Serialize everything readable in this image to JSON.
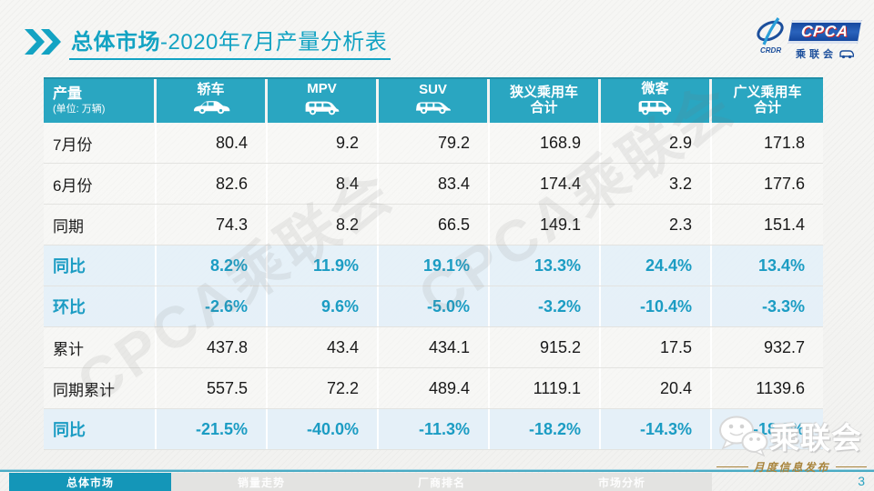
{
  "slide": {
    "title": {
      "prefix": "总体市场",
      "suffix": "-2020年7月产量分析表"
    },
    "watermark": "CPCA乘联会",
    "page_number": "3",
    "footer_tabs": [
      {
        "label": "总体市场",
        "active": true
      },
      {
        "label": "销量走势",
        "active": false
      },
      {
        "label": "厂商排名",
        "active": false
      },
      {
        "label": "市场分析",
        "active": false
      }
    ],
    "cpca_logo": {
      "acronym": "CPCA",
      "sub": "CRDR",
      "cn_name": "乘联会"
    },
    "wechat_logo": {
      "cn_name": "乘联会",
      "subtitle": "月度信息发布"
    }
  },
  "table": {
    "header": {
      "label": "产量",
      "unit": "(单位: 万辆)",
      "columns": [
        {
          "label": "轿车",
          "icon": "sedan-icon"
        },
        {
          "label": "MPV",
          "icon": "mpv-icon"
        },
        {
          "label": "SUV",
          "icon": "suv-icon"
        },
        {
          "label": "狭义乘用车",
          "label2": "合计",
          "icon": null
        },
        {
          "label": "微客",
          "icon": "microvan-icon"
        },
        {
          "label": "广义乘用车",
          "label2": "合计",
          "icon": null
        }
      ]
    },
    "rows": [
      {
        "label": "7月份",
        "type": "normal",
        "values": [
          "80.4",
          "9.2",
          "79.2",
          "168.9",
          "2.9",
          "171.8"
        ]
      },
      {
        "label": "6月份",
        "type": "normal",
        "values": [
          "82.6",
          "8.4",
          "83.4",
          "174.4",
          "3.2",
          "177.6"
        ]
      },
      {
        "label": "同期",
        "type": "normal",
        "values": [
          "74.3",
          "8.2",
          "66.5",
          "149.1",
          "2.3",
          "151.4"
        ]
      },
      {
        "label": "同比",
        "type": "highlight",
        "values": [
          "8.2%",
          "11.9%",
          "19.1%",
          "13.3%",
          "24.4%",
          "13.4%"
        ]
      },
      {
        "label": "环比",
        "type": "highlight",
        "values": [
          "-2.6%",
          "9.6%",
          "-5.0%",
          "-3.2%",
          "-10.4%",
          "-3.3%"
        ]
      },
      {
        "label": "累计",
        "type": "normal",
        "values": [
          "437.8",
          "43.4",
          "434.1",
          "915.2",
          "17.5",
          "932.7"
        ]
      },
      {
        "label": "同期累计",
        "type": "normal",
        "values": [
          "557.5",
          "72.2",
          "489.4",
          "1119.1",
          "20.4",
          "1139.6"
        ]
      },
      {
        "label": "同比",
        "type": "highlight",
        "values": [
          "-21.5%",
          "-40.0%",
          "-11.3%",
          "-18.2%",
          "-14.3%",
          "-18.2%"
        ]
      }
    ]
  },
  "colors": {
    "accent_teal": "#13a3c3",
    "header_bg": "#2aa6c1",
    "highlight_row_bg": "#e4f0f8",
    "highlight_text": "#1b9cc3",
    "logo_blue": "#1c4f9c",
    "gold": "#a8843c"
  }
}
